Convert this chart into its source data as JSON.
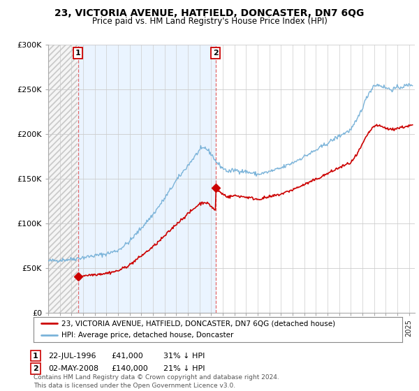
{
  "title": "23, VICTORIA AVENUE, HATFIELD, DONCASTER, DN7 6QG",
  "subtitle": "Price paid vs. HM Land Registry's House Price Index (HPI)",
  "ylim": [
    0,
    300000
  ],
  "yticks": [
    0,
    50000,
    100000,
    150000,
    200000,
    250000,
    300000
  ],
  "background_color": "#ffffff",
  "plot_bg_color": "#ffffff",
  "grid_color": "#cccccc",
  "hpi_color": "#7ab3d9",
  "hpi_fill_color": "#ddeeff",
  "price_color": "#cc0000",
  "sale1_date": 1996.55,
  "sale1_price": 41000,
  "sale2_date": 2008.37,
  "sale2_price": 140000,
  "legend_house": "23, VICTORIA AVENUE, HATFIELD, DONCASTER, DN7 6QG (detached house)",
  "legend_hpi": "HPI: Average price, detached house, Doncaster",
  "footer": "Contains HM Land Registry data © Crown copyright and database right 2024.\nThis data is licensed under the Open Government Licence v3.0.",
  "xmin": 1994.0,
  "xmax": 2025.5,
  "hpi_scale_points_x": [
    1994.0,
    1995.0,
    1996.0,
    1997.0,
    1998.0,
    1999.0,
    2000.0,
    2001.0,
    2002.0,
    2003.0,
    2004.0,
    2005.0,
    2006.0,
    2007.0,
    2007.5,
    2008.0,
    2008.5,
    2009.0,
    2009.5,
    2010.0,
    2011.0,
    2012.0,
    2013.0,
    2014.0,
    2015.0,
    2016.0,
    2017.0,
    2018.0,
    2019.0,
    2020.0,
    2020.5,
    2021.0,
    2021.5,
    2022.0,
    2022.5,
    2023.0,
    2023.5,
    2024.0,
    2025.0,
    2025.3
  ],
  "hpi_scale_points_y": [
    58000,
    59000,
    60000,
    62000,
    64000,
    66000,
    70000,
    80000,
    95000,
    110000,
    128000,
    148000,
    165000,
    182000,
    185000,
    178000,
    168000,
    162000,
    158000,
    160000,
    158000,
    155000,
    158000,
    162000,
    168000,
    175000,
    182000,
    190000,
    198000,
    205000,
    215000,
    230000,
    245000,
    255000,
    255000,
    252000,
    250000,
    252000,
    255000,
    256000
  ]
}
